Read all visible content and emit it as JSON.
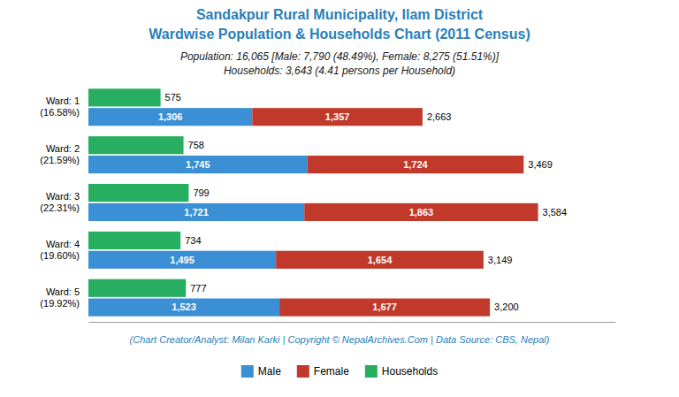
{
  "chart_data": {
    "type": "bar",
    "orientation": "horizontal",
    "title": [
      "Sandakpur Rural Municipality, Ilam District",
      "Wardwise Population & Households Chart (2011 Census)"
    ],
    "subtitle": [
      "Population: 16,065 [Male: 7,790 (48.49%), Female: 8,275 (51.51%)]",
      "Households: 3,643 (4.41 persons per Household)"
    ],
    "annotations": [
      "(Chart Creator/Analyst: Milan Karki | Copyright © NepalArchives.Com | Data Source: CBS, Nepal)"
    ],
    "categories": [
      "Ward: 1\n(16.58%)",
      "Ward: 2\n(21.59%)",
      "Ward: 3\n(22.31%)",
      "Ward: 4\n(19.60%)",
      "Ward: 5\n(19.92%)"
    ],
    "series": [
      {
        "name": "Male",
        "color": "#3b8fd4",
        "stacked": true,
        "values": [
          1306,
          1745,
          1721,
          1495,
          1523
        ],
        "value_labels": [
          "1,306",
          "1,745",
          "1,721",
          "1,495",
          "1,523"
        ]
      },
      {
        "name": "Female",
        "color": "#c0392b",
        "stacked": true,
        "values": [
          1357,
          1724,
          1863,
          1654,
          1677
        ],
        "value_labels": [
          "1,357",
          "1,724",
          "1,863",
          "1,654",
          "1,677"
        ]
      },
      {
        "name": "Households",
        "color": "#27ae60",
        "values": [
          575,
          758,
          799,
          734,
          777
        ],
        "value_labels": [
          "575",
          "758",
          "799",
          "734",
          "777"
        ]
      }
    ],
    "totals": {
      "values": [
        2663,
        3469,
        3584,
        3149,
        3200
      ],
      "value_labels": [
        "2,663",
        "3,469",
        "3,584",
        "3,149",
        "3,200"
      ]
    },
    "xlim": [
      0,
      4200
    ],
    "tick_labels": "y",
    "data_labels": true,
    "grid": false,
    "legend": "bottom"
  }
}
